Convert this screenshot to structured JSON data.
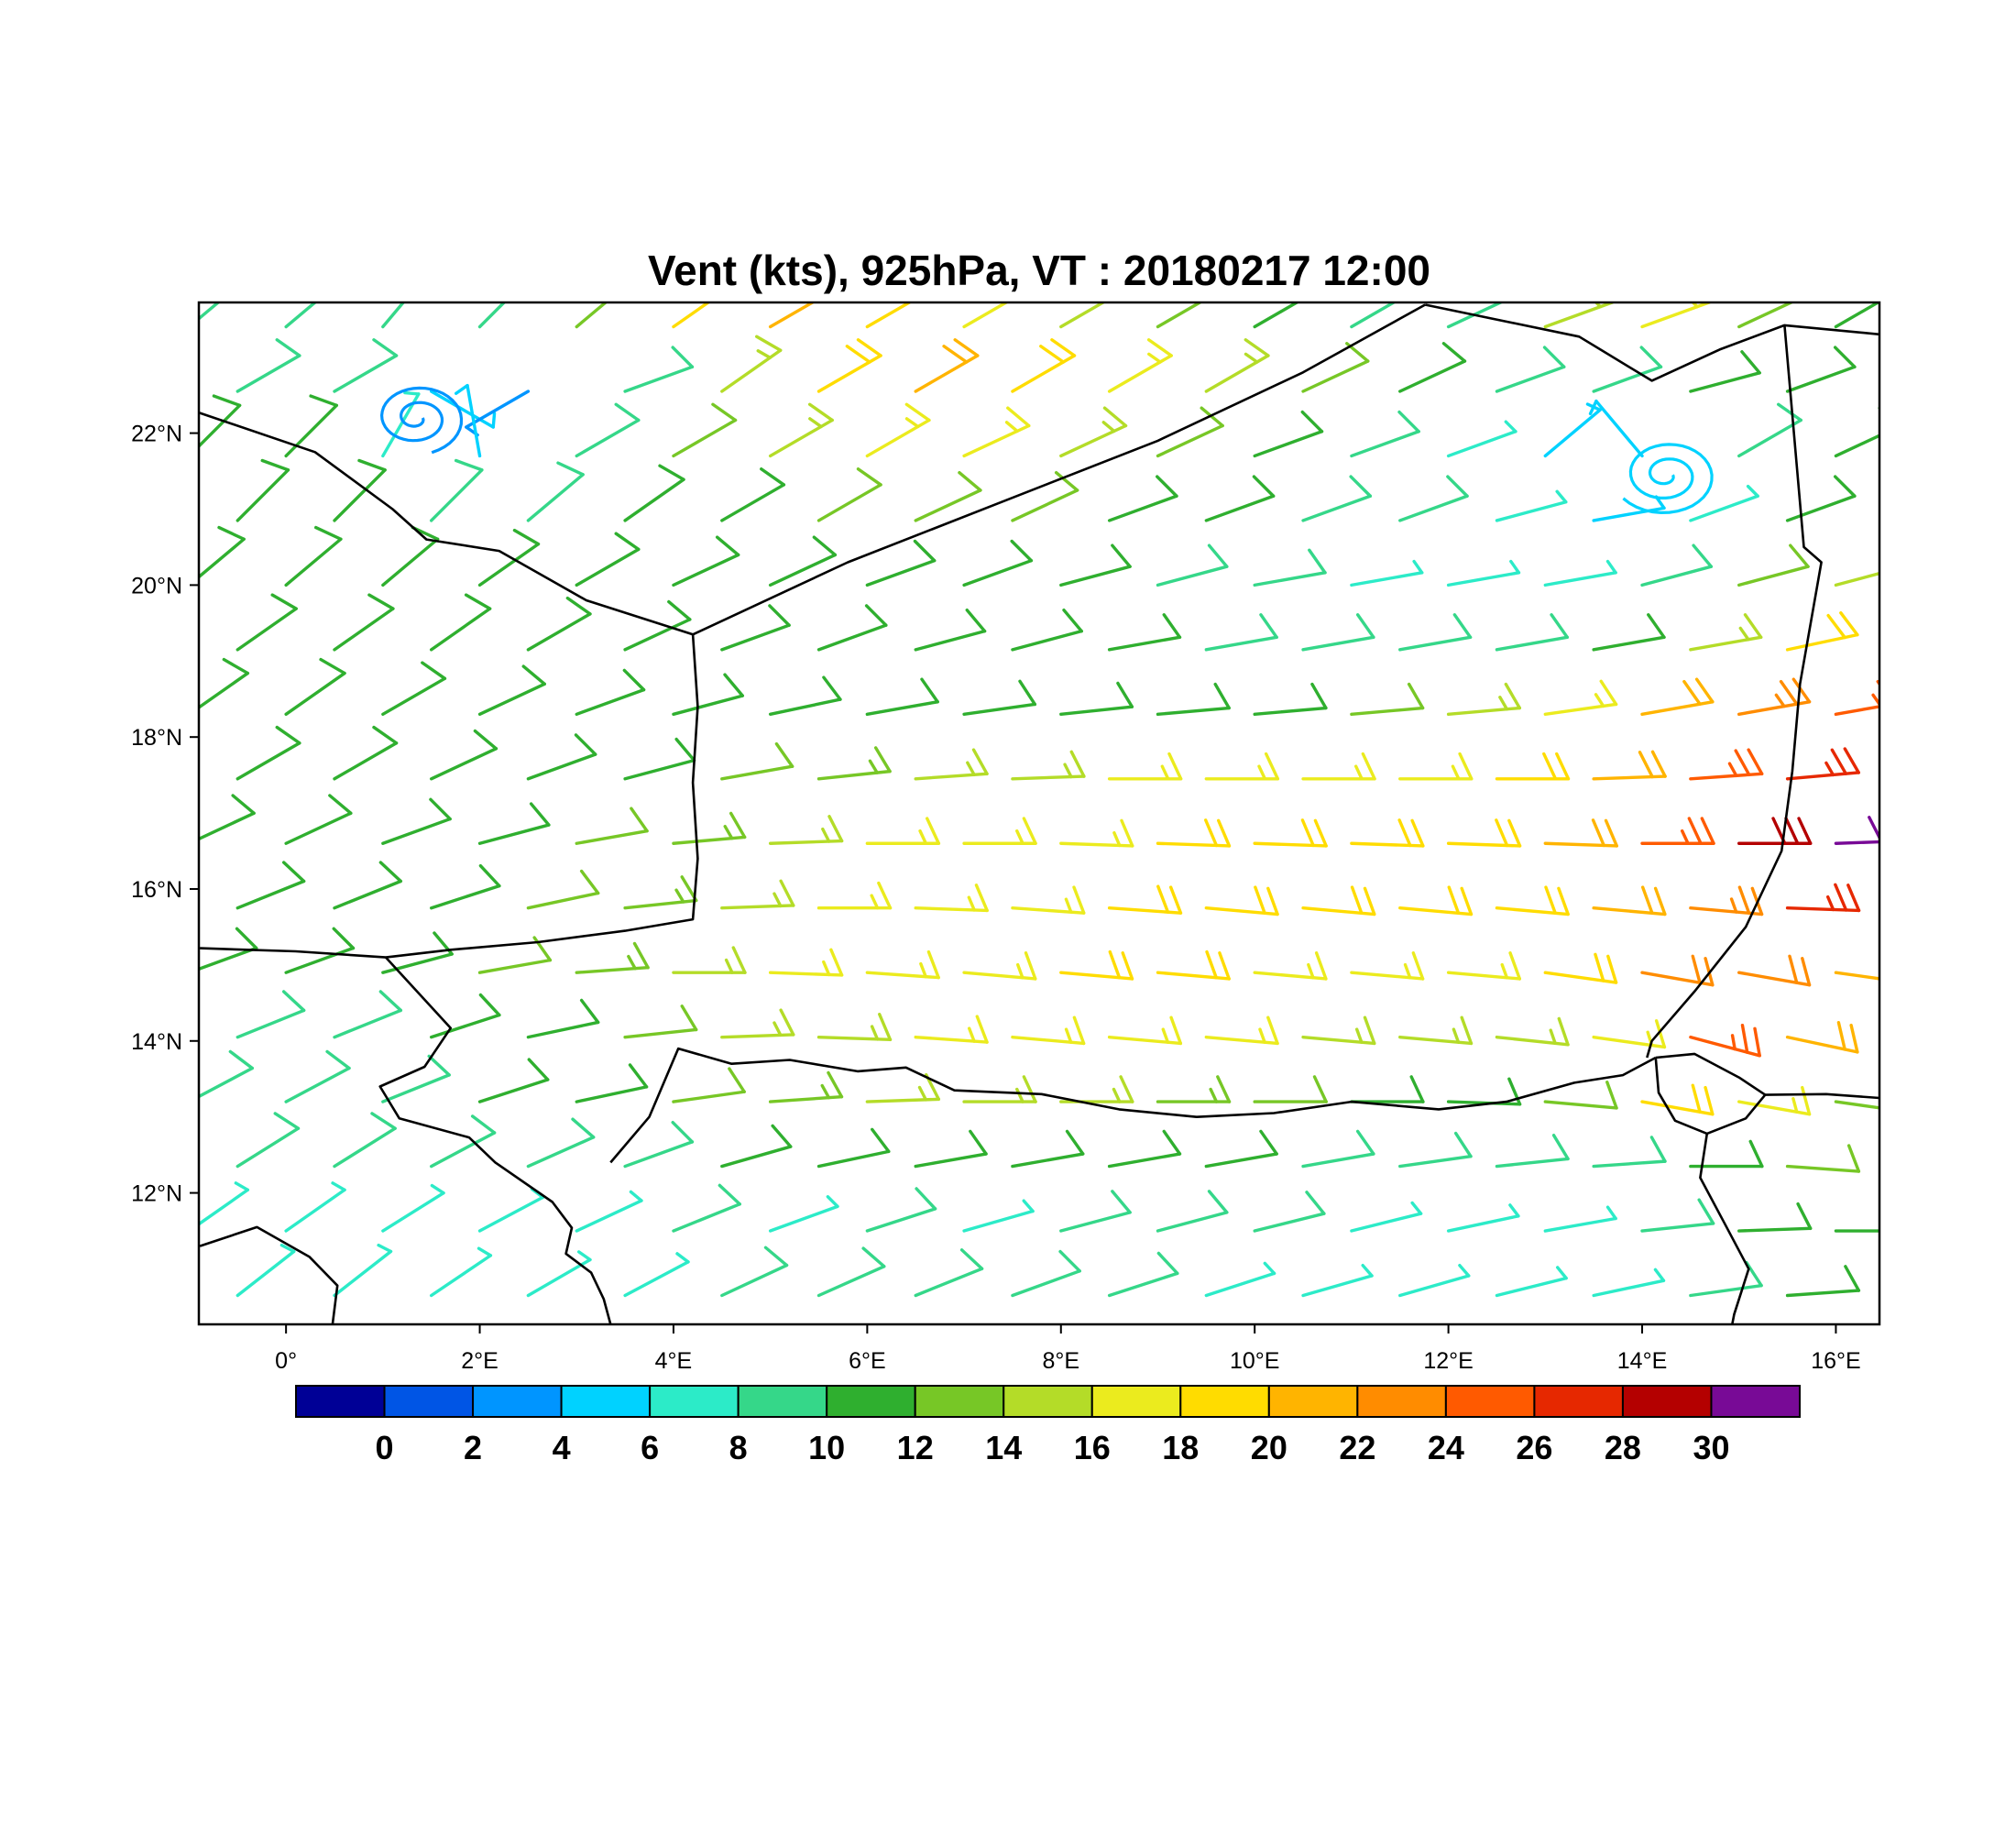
{
  "page": {
    "background": "#ffffff"
  },
  "chart_data": {
    "type": "wind_barb_map",
    "title": "Vent (kts), 925hPa, VT : 20180217  12:00",
    "variable": "Vent",
    "units": "kts",
    "level": "925hPa",
    "valid_time": "20180217 12:00",
    "xlim": [
      -0.9,
      16.45
    ],
    "ylim": [
      10.27,
      23.72
    ],
    "x_ticks": {
      "values": [
        0,
        2,
        4,
        6,
        8,
        10,
        12,
        14,
        16
      ],
      "labels": [
        "0°",
        "2°E",
        "4°E",
        "6°E",
        "8°E",
        "10°E",
        "12°E",
        "14°E",
        "16°E"
      ]
    },
    "y_ticks": {
      "values": [
        12,
        14,
        16,
        18,
        20,
        22
      ],
      "labels": [
        "12°N",
        "14°N",
        "16°N",
        "18°N",
        "20°N",
        "22°N"
      ]
    },
    "colorbar": {
      "levels": [
        0,
        2,
        4,
        6,
        8,
        10,
        12,
        14,
        16,
        18,
        20,
        22,
        24,
        26,
        28,
        30
      ],
      "labels": [
        "0",
        "2",
        "4",
        "6",
        "8",
        "10",
        "12",
        "14",
        "16",
        "18",
        "20",
        "22",
        "24",
        "26",
        "28",
        "30"
      ],
      "colors": [
        "#000096",
        "#0055E5",
        "#0095FF",
        "#00D2FF",
        "#2CEBC8",
        "#35D789",
        "#2FAF2F",
        "#77C726",
        "#B4DC28",
        "#EBEB1E",
        "#FFDC00",
        "#FFB400",
        "#FF8C00",
        "#FF5A00",
        "#E62800",
        "#B40000",
        "#780A96"
      ]
    },
    "wind_grid": {
      "lons": [
        -1,
        0,
        1,
        2,
        3,
        4,
        5,
        6,
        7,
        8,
        9,
        10,
        11,
        12,
        13,
        14,
        15,
        16
      ],
      "lats": [
        23.4,
        22.55,
        21.7,
        20.85,
        20.0,
        19.15,
        18.3,
        17.45,
        16.6,
        15.75,
        14.9,
        14.05,
        13.2,
        12.35,
        11.5,
        10.65
      ],
      "stagger_lon": 0.5,
      "speeds_kts": [
        [
          9,
          9,
          8,
          8,
          12,
          18,
          20,
          18,
          16,
          14,
          12,
          10,
          8,
          8,
          14,
          16,
          12,
          10
        ],
        [
          8,
          8,
          4,
          3,
          8,
          14,
          18,
          20,
          18,
          16,
          14,
          12,
          10,
          8,
          8,
          10,
          10,
          10
        ],
        [
          10,
          10,
          6,
          5,
          9,
          12,
          14,
          16,
          16,
          14,
          12,
          10,
          8,
          6,
          5,
          4,
          8,
          10
        ],
        [
          10,
          10,
          9,
          9,
          10,
          11,
          12,
          12,
          12,
          11,
          10,
          9,
          8,
          6,
          5,
          6,
          10,
          12
        ],
        [
          10,
          10,
          10,
          10,
          10,
          10,
          11,
          11,
          11,
          10,
          9,
          8,
          7,
          6,
          7,
          9,
          12,
          14
        ],
        [
          10,
          10,
          10,
          10,
          10,
          10,
          10,
          10,
          10,
          10,
          9,
          8,
          8,
          9,
          11,
          14,
          18,
          20
        ],
        [
          10,
          10,
          10,
          10,
          10,
          10,
          10,
          11,
          11,
          11,
          11,
          11,
          12,
          14,
          17,
          20,
          23,
          25
        ],
        [
          10,
          10,
          10,
          11,
          11,
          12,
          13,
          14,
          15,
          16,
          16,
          17,
          17,
          18,
          20,
          24,
          27,
          29
        ],
        [
          10,
          10,
          11,
          11,
          12,
          13,
          15,
          16,
          17,
          17,
          18,
          18,
          18,
          19,
          21,
          25,
          28,
          30
        ],
        [
          10,
          10,
          11,
          12,
          13,
          14,
          16,
          17,
          17,
          18,
          18,
          18,
          18,
          19,
          20,
          23,
          26,
          25
        ],
        [
          10,
          10,
          11,
          12,
          13,
          15,
          16,
          17,
          17,
          18,
          18,
          17,
          17,
          17,
          18,
          22,
          22,
          20
        ],
        [
          9,
          9,
          10,
          11,
          12,
          14,
          15,
          16,
          16,
          16,
          16,
          15,
          14,
          14,
          16,
          24,
          20,
          16
        ],
        [
          8,
          8,
          9,
          10,
          11,
          12,
          13,
          14,
          14,
          14,
          13,
          12,
          11,
          10,
          12,
          18,
          16,
          13
        ],
        [
          8,
          8,
          8,
          9,
          9,
          10,
          10,
          11,
          11,
          10,
          10,
          9,
          9,
          8,
          9,
          11,
          12,
          12
        ],
        [
          7,
          7,
          7,
          7,
          7,
          8,
          7,
          8,
          7,
          8,
          8,
          8,
          7,
          7,
          7,
          9,
          11,
          11
        ],
        [
          6,
          6,
          7,
          7,
          7,
          8,
          8,
          8,
          8,
          8,
          7,
          7,
          6,
          6,
          6,
          8,
          10,
          10
        ]
      ],
      "directions_from_deg": [
        [
          50,
          50,
          40,
          45,
          50,
          55,
          60,
          60,
          60,
          60,
          60,
          60,
          60,
          65,
          70,
          70,
          65,
          60
        ],
        [
          60,
          60,
          120,
          240,
          70,
          55,
          60,
          60,
          60,
          60,
          60,
          65,
          65,
          70,
          70,
          75,
          70,
          65
        ],
        [
          45,
          45,
          30,
          350,
          60,
          60,
          60,
          60,
          65,
          65,
          65,
          70,
          70,
          70,
          50,
          320,
          60,
          65
        ],
        [
          45,
          45,
          45,
          50,
          55,
          60,
          60,
          65,
          65,
          70,
          70,
          70,
          70,
          75,
          80,
          70,
          70,
          70
        ],
        [
          50,
          50,
          50,
          55,
          60,
          65,
          65,
          70,
          70,
          75,
          75,
          80,
          80,
          80,
          80,
          75,
          75,
          75
        ],
        [
          55,
          55,
          55,
          60,
          65,
          70,
          70,
          75,
          75,
          80,
          80,
          80,
          80,
          80,
          80,
          80,
          78,
          76
        ],
        [
          55,
          55,
          60,
          65,
          70,
          75,
          78,
          80,
          82,
          84,
          85,
          85,
          85,
          85,
          82,
          80,
          80,
          80
        ],
        [
          60,
          60,
          65,
          70,
          75,
          80,
          84,
          86,
          88,
          90,
          90,
          90,
          90,
          90,
          88,
          86,
          85,
          85
        ],
        [
          65,
          65,
          70,
          75,
          80,
          85,
          88,
          90,
          90,
          92,
          92,
          92,
          92,
          92,
          92,
          90,
          90,
          88
        ],
        [
          68,
          68,
          72,
          78,
          84,
          88,
          90,
          92,
          94,
          94,
          95,
          95,
          95,
          95,
          95,
          95,
          92,
          90
        ],
        [
          70,
          70,
          75,
          80,
          86,
          90,
          92,
          94,
          95,
          95,
          95,
          95,
          95,
          95,
          98,
          100,
          100,
          98
        ],
        [
          68,
          68,
          72,
          78,
          84,
          88,
          92,
          94,
          95,
          95,
          95,
          95,
          95,
          96,
          98,
          105,
          102,
          100
        ],
        [
          62,
          62,
          68,
          72,
          78,
          82,
          86,
          88,
          90,
          90,
          90,
          90,
          90,
          92,
          95,
          100,
          100,
          98
        ],
        [
          58,
          58,
          62,
          66,
          70,
          74,
          78,
          80,
          80,
          80,
          80,
          80,
          82,
          84,
          86,
          90,
          94,
          95
        ],
        [
          55,
          55,
          58,
          62,
          65,
          68,
          70,
          72,
          74,
          75,
          75,
          76,
          76,
          78,
          80,
          84,
          88,
          90
        ],
        [
          52,
          52,
          56,
          60,
          62,
          65,
          66,
          68,
          70,
          72,
          72,
          74,
          74,
          76,
          78,
          82,
          86,
          88
        ]
      ]
    },
    "swirls": [
      {
        "lon": 1.35,
        "lat": 22.2,
        "radius_deg": 0.5,
        "turns": 2.2,
        "speed_kts": 3
      },
      {
        "lon": 14.25,
        "lat": 21.45,
        "radius_deg": 0.55,
        "turns": 2.4,
        "speed_kts": 5
      }
    ],
    "map_borders": [
      [
        [
          -0.9,
          22.27
        ],
        [
          0.3,
          21.75
        ],
        [
          1.1,
          21.0
        ],
        [
          1.45,
          20.6
        ],
        [
          2.2,
          20.45
        ],
        [
          3.1,
          19.8
        ],
        [
          4.2,
          19.35
        ]
      ],
      [
        [
          4.2,
          19.35
        ],
        [
          5.8,
          20.3
        ],
        [
          7.4,
          21.1
        ],
        [
          9.0,
          21.9
        ],
        [
          10.5,
          22.8
        ],
        [
          11.76,
          23.69
        ]
      ],
      [
        [
          11.76,
          23.69
        ],
        [
          13.35,
          23.27
        ],
        [
          14.1,
          22.69
        ],
        [
          14.8,
          23.1
        ],
        [
          15.47,
          23.42
        ],
        [
          16.45,
          23.3
        ]
      ],
      [
        [
          15.47,
          23.42
        ],
        [
          15.67,
          20.5
        ],
        [
          15.85,
          20.3
        ],
        [
          15.63,
          18.7
        ],
        [
          15.55,
          17.55
        ],
        [
          15.44,
          16.5
        ],
        [
          15.07,
          15.5
        ],
        [
          14.54,
          14.65
        ],
        [
          14.1,
          14.0
        ],
        [
          14.05,
          13.78
        ]
      ],
      [
        [
          3.35,
          12.4
        ],
        [
          3.75,
          13.0
        ],
        [
          4.05,
          13.9
        ],
        [
          4.6,
          13.7
        ],
        [
          5.2,
          13.75
        ],
        [
          5.9,
          13.6
        ],
        [
          6.4,
          13.65
        ],
        [
          6.9,
          13.35
        ],
        [
          7.8,
          13.3
        ],
        [
          8.6,
          13.1
        ],
        [
          9.4,
          13.0
        ],
        [
          10.2,
          13.05
        ],
        [
          11.0,
          13.2
        ],
        [
          11.9,
          13.1
        ],
        [
          12.6,
          13.2
        ],
        [
          13.3,
          13.45
        ],
        [
          13.8,
          13.55
        ],
        [
          14.14,
          13.78
        ]
      ],
      [
        [
          4.2,
          19.35
        ],
        [
          4.25,
          18.4
        ],
        [
          4.2,
          17.4
        ],
        [
          4.25,
          16.4
        ],
        [
          4.2,
          15.6
        ],
        [
          3.5,
          15.45
        ],
        [
          2.6,
          15.3
        ],
        [
          1.7,
          15.2
        ],
        [
          1.03,
          15.1
        ]
      ],
      [
        [
          -0.89,
          15.22
        ],
        [
          0.1,
          15.18
        ],
        [
          1.03,
          15.1
        ]
      ],
      [
        [
          1.03,
          15.1
        ],
        [
          1.7,
          14.17
        ],
        [
          1.43,
          13.66
        ],
        [
          0.97,
          13.4
        ],
        [
          1.17,
          12.98
        ],
        [
          1.89,
          12.73
        ],
        [
          2.16,
          12.4
        ],
        [
          2.75,
          11.88
        ],
        [
          2.95,
          11.54
        ],
        [
          2.89,
          11.2
        ],
        [
          3.15,
          10.95
        ],
        [
          3.28,
          10.6
        ],
        [
          3.35,
          10.27
        ]
      ],
      [
        [
          -0.89,
          11.3
        ],
        [
          -0.3,
          11.55
        ],
        [
          0.24,
          11.16
        ],
        [
          0.53,
          10.78
        ],
        [
          0.48,
          10.27
        ]
      ],
      [
        [
          15.27,
          13.29
        ],
        [
          15.9,
          13.3
        ],
        [
          16.45,
          13.25
        ]
      ],
      [
        [
          14.14,
          13.78
        ],
        [
          14.54,
          13.83
        ],
        [
          15.0,
          13.52
        ],
        [
          15.27,
          13.29
        ],
        [
          15.07,
          12.98
        ],
        [
          14.67,
          12.78
        ],
        [
          14.34,
          12.95
        ],
        [
          14.17,
          13.32
        ],
        [
          14.14,
          13.78
        ]
      ],
      [
        [
          14.67,
          12.78
        ],
        [
          14.6,
          12.2
        ],
        [
          14.85,
          11.6
        ],
        [
          15.1,
          11.0
        ],
        [
          14.95,
          10.4
        ],
        [
          14.93,
          10.27
        ]
      ]
    ]
  }
}
